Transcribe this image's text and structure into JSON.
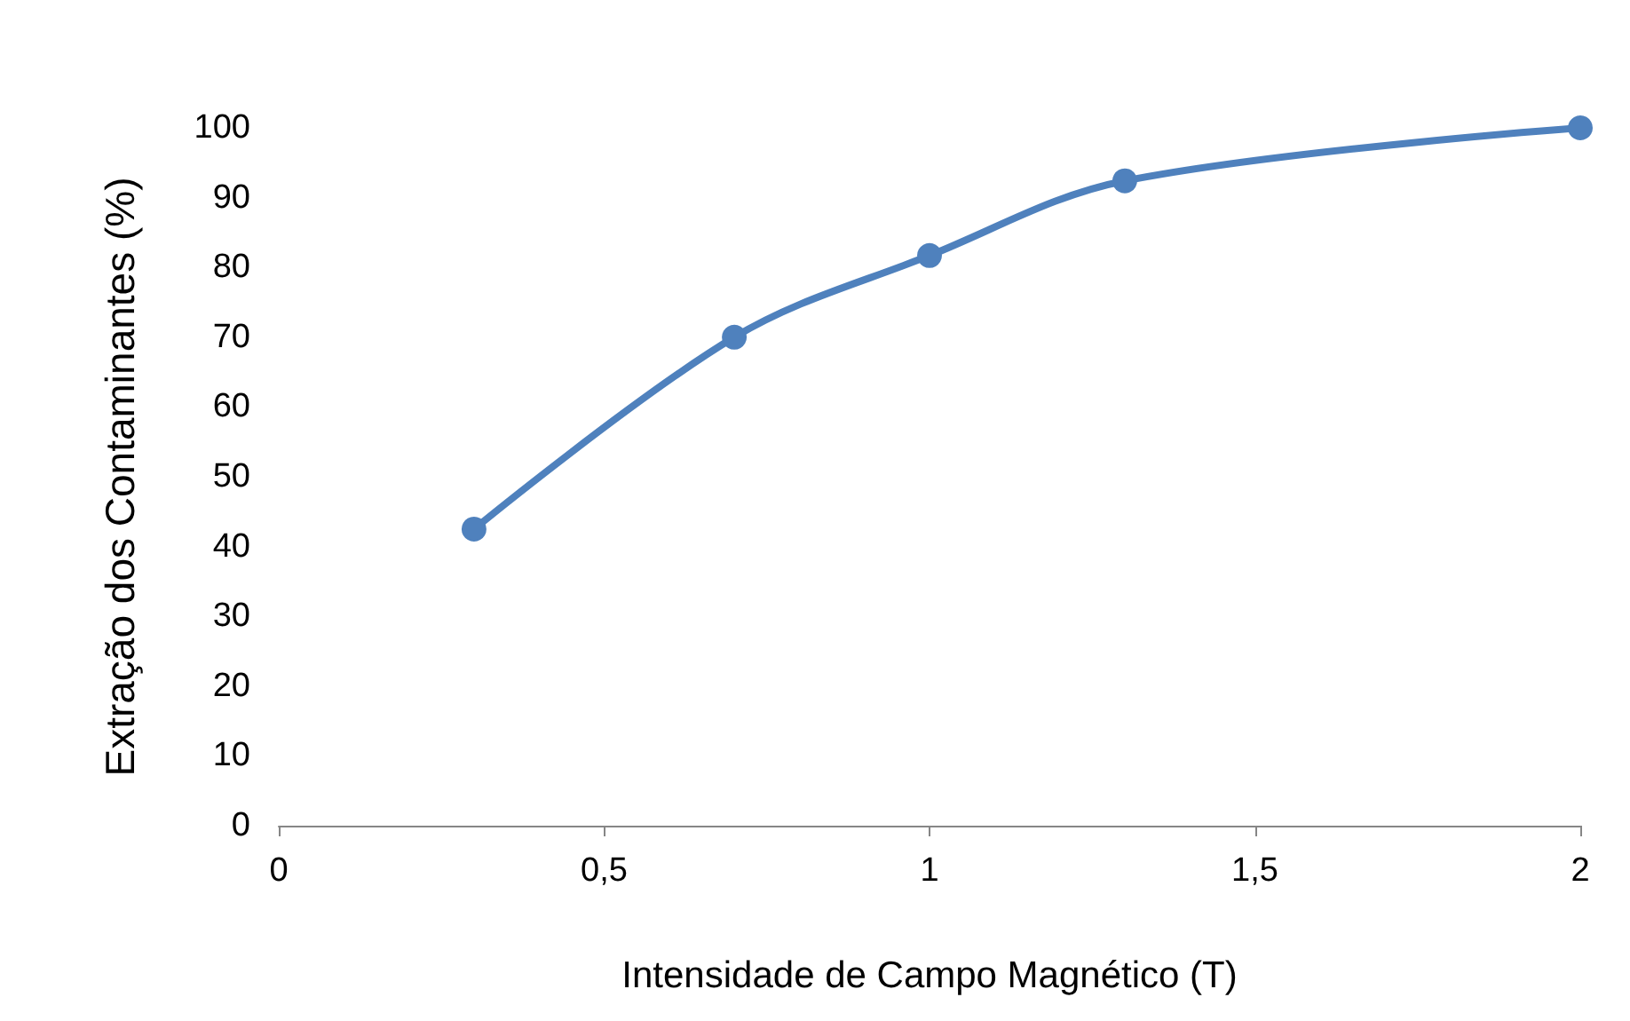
{
  "chart_data": {
    "type": "line",
    "xlabel": "Intensidade de Campo Magnético (T)",
    "ylabel": "Extração dos Contaminantes (%)",
    "x": [
      0.3,
      0.7,
      1,
      1.3,
      2
    ],
    "series": [
      {
        "color": "#4f81bd",
        "values": [
          42.5,
          70,
          81.7,
          92.4,
          100
        ]
      }
    ],
    "xlim": [
      0,
      2
    ],
    "xticks": [
      0,
      {
        "value": 0.5,
        "label": "0,5"
      },
      1,
      {
        "value": 1.5,
        "label": "1,5"
      },
      2
    ],
    "ylim": [
      0,
      100
    ],
    "yticks": [
      0,
      10,
      20,
      30,
      40,
      50,
      60,
      70,
      80,
      90,
      100
    ],
    "marker": "circle",
    "line_style": "solid",
    "grid": false
  }
}
